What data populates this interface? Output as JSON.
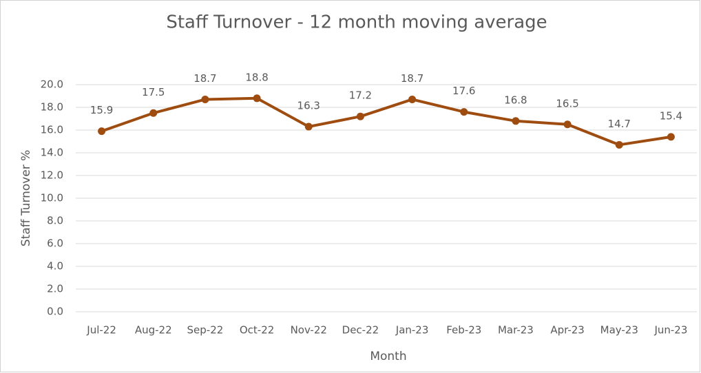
{
  "chart_data": {
    "type": "line",
    "title": "Staff Turnover - 12 month moving average",
    "x_label": "Month",
    "y_label": "Staff Turnover %",
    "categories": [
      "Jul-22",
      "Aug-22",
      "Sep-22",
      "Oct-22",
      "Nov-22",
      "Dec-22",
      "Jan-23",
      "Feb-23",
      "Mar-23",
      "Apr-23",
      "May-23",
      "Jun-23"
    ],
    "series": [
      {
        "name": "Staff Turnover %",
        "color": "#9e4c10",
        "values": [
          15.9,
          17.5,
          18.7,
          18.8,
          16.3,
          17.2,
          18.7,
          17.6,
          16.8,
          16.5,
          14.7,
          15.4
        ]
      }
    ],
    "ylim": [
      0,
      20
    ],
    "yticks": [
      {
        "value": 0,
        "label": "0.0"
      },
      {
        "value": 2,
        "label": "2.0"
      },
      {
        "value": 4,
        "label": "4.0"
      },
      {
        "value": 6,
        "label": "6.0"
      },
      {
        "value": 8,
        "label": "8.0"
      },
      {
        "value": 10,
        "label": "10.0"
      },
      {
        "value": 12,
        "label": "12.0"
      },
      {
        "value": 14,
        "label": "14.0"
      },
      {
        "value": 16,
        "label": "16.0"
      },
      {
        "value": 18,
        "label": "18.0"
      },
      {
        "value": 20,
        "label": "20.0"
      }
    ],
    "grid": true
  }
}
